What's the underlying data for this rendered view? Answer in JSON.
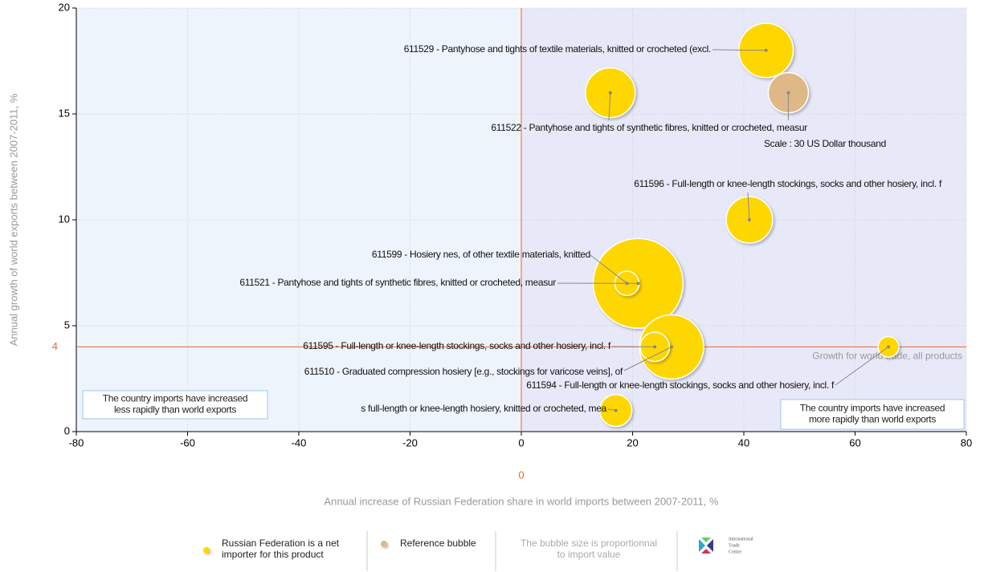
{
  "chart_data": {
    "type": "bubble",
    "x_label": "Annual increase of Russian Federation share in world imports between 2007-2011, %",
    "y_label": "Annual growth of world exports between 2007-2011, %",
    "xlim": [
      -80,
      80
    ],
    "xticks": [
      -80,
      -60,
      -40,
      -20,
      0,
      20,
      40,
      60,
      80
    ],
    "ylim": [
      0,
      20
    ],
    "yticks": [
      0,
      5,
      10,
      15,
      20
    ],
    "grid": true,
    "bubble_color": "#ffd700",
    "vline": {
      "value": 0,
      "color": "#f0642d"
    },
    "hline": {
      "value": 4,
      "color": "#f0642d",
      "label": "Growth for world trade, all products"
    },
    "bubbles": [
      {
        "label": "611529 - Pantyhose and tights of textile materials, knitted or crocheted (excl.",
        "x": 44,
        "y": 18,
        "size": 55
      },
      {
        "label": "611522 - Pantyhose and tights of synthetic fibres, knitted or crocheted, measur",
        "x": 16,
        "y": 16,
        "size": 46
      },
      {
        "label": "611596 - Full-length or knee-length stockings, socks and other hosiery, incl. f",
        "x": 41,
        "y": 10,
        "size": 40
      },
      {
        "label": "611521 - Pantyhose and tights of synthetic fibres, knitted or crocheted, measur",
        "x": 21,
        "y": 7,
        "size": 150
      },
      {
        "label": "611599 - Hosiery nes, of other textile materials, knitted",
        "x": 19,
        "y": 7,
        "size": 11
      },
      {
        "label": "611510 - Graduated compression hosiery [e.g., stockings for varicose veins], of",
        "x": 27,
        "y": 4,
        "size": 77
      },
      {
        "label": "611595 - Full-length or knee-length stockings, socks and other hosiery, incl. f",
        "x": 24,
        "y": 4,
        "size": 16
      },
      {
        "label": "611594 - Full-length or knee-length stockings, socks and other hosiery, incl. f",
        "x": 66,
        "y": 4,
        "size": 8
      },
      {
        "label": "s full-length or knee-length hosiery, knitted or crocheted, mea",
        "x": 17,
        "y": 1,
        "size": 19
      }
    ],
    "reference": {
      "x": 48,
      "y": 16,
      "size": 30,
      "color": "#deb887",
      "label": "Scale : 30 US Dollar thousand"
    },
    "notes": [
      "The country imports have increased less rapidly than world exports",
      "The country imports have increased more rapidly than world exports"
    ],
    "legend": [
      {
        "lines": [
          "Russian Federation is a net",
          "importer for this product"
        ],
        "color": "#ffd700"
      },
      {
        "lines": [
          "Reference bubble"
        ],
        "color": "#deb887"
      }
    ],
    "size_note": [
      "The bubble size is proportionnal",
      "to import value"
    ],
    "logo": [
      "International",
      "Trade",
      "Centre"
    ]
  }
}
